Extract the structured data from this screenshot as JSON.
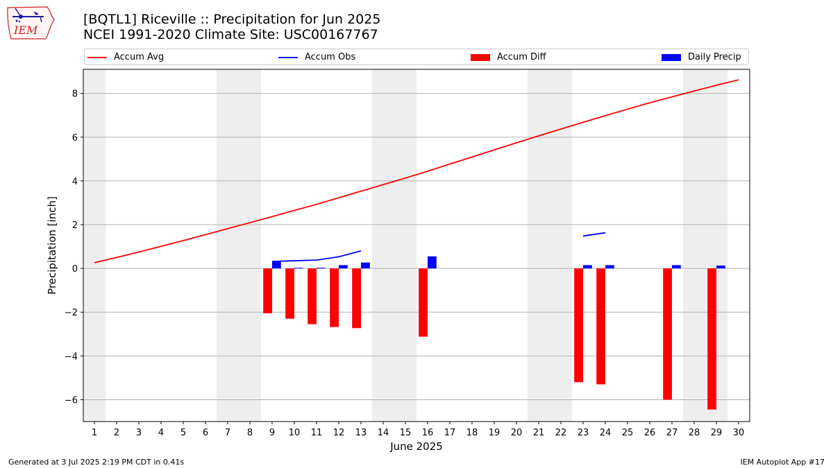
{
  "header": {
    "title_line1": "[BQTL1] Riceville :: Precipitation for Jun 2025",
    "title_line2": "NCEI 1991-2020 Climate Site: USC00167767"
  },
  "logo": {
    "text": "IEM",
    "icon": "iowa-state-outline-weather-station-logo"
  },
  "legend": [
    {
      "label": "Accum Avg",
      "kind": "line",
      "color": "#ff0000"
    },
    {
      "label": "Accum Obs",
      "kind": "line",
      "color": "#0000ff"
    },
    {
      "label": "Accum Diff",
      "kind": "patch",
      "color": "#ff0000"
    },
    {
      "label": "Daily Precip",
      "kind": "patch",
      "color": "#0000ff"
    }
  ],
  "footer": {
    "left": "Generated at 3 Jul 2025 2:19 PM CDT in 0.41s",
    "right": "IEM Autoplot App #17"
  },
  "chart_data": {
    "type": "bar",
    "title": "[BQTL1] Riceville :: Precipitation for Jun 2025",
    "subtitle": "NCEI 1991-2020 Climate Site: USC00167767",
    "xlabel": "June 2025",
    "ylabel": "Precipitation [inch]",
    "xlim": [
      0.5,
      30.5
    ],
    "ylim": [
      -7.0,
      9.1
    ],
    "x_ticks": [
      1,
      2,
      3,
      4,
      5,
      6,
      7,
      8,
      9,
      10,
      11,
      12,
      13,
      14,
      15,
      16,
      17,
      18,
      19,
      20,
      21,
      22,
      23,
      24,
      25,
      26,
      27,
      28,
      29,
      30
    ],
    "y_ticks": [
      -6,
      -4,
      -2,
      0,
      2,
      4,
      6,
      8
    ],
    "y_tick_labels": [
      "−6",
      "−4",
      "−2",
      "0",
      "2",
      "4",
      "6",
      "8"
    ],
    "grid": "horizontal",
    "legend_placement": "top, above plot",
    "weekend_shading": {
      "color": "#eeeeee",
      "days": [
        1,
        7,
        8,
        14,
        15,
        21,
        22,
        28,
        29
      ]
    },
    "series": [
      {
        "name": "Accum Avg",
        "kind": "line",
        "color": "#ff0000",
        "x": [
          1,
          2,
          3,
          4,
          5,
          6,
          7,
          8,
          9,
          10,
          11,
          12,
          13,
          14,
          15,
          16,
          17,
          18,
          19,
          20,
          21,
          22,
          23,
          24,
          25,
          26,
          27,
          28,
          29,
          30
        ],
        "values": [
          0.26,
          0.5,
          0.75,
          1.01,
          1.27,
          1.54,
          1.82,
          2.09,
          2.37,
          2.65,
          2.93,
          3.23,
          3.53,
          3.83,
          4.13,
          4.44,
          4.77,
          5.09,
          5.42,
          5.74,
          6.06,
          6.37,
          6.68,
          6.98,
          7.28,
          7.57,
          7.84,
          8.11,
          8.37,
          8.62
        ]
      },
      {
        "name": "Accum Obs",
        "kind": "line",
        "color": "#0000ff",
        "segments": [
          {
            "x": [
              9,
              10,
              11,
              12,
              13
            ],
            "values": [
              0.32,
              0.35,
              0.38,
              0.53,
              0.8
            ]
          },
          {
            "x": [
              23,
              24
            ],
            "values": [
              1.48,
              1.63
            ]
          }
        ]
      },
      {
        "name": "Accum Diff",
        "kind": "bar",
        "color": "#ff0000",
        "offset": -0.2,
        "x": [
          9,
          10,
          11,
          12,
          13,
          16,
          23,
          24,
          27,
          29
        ],
        "values": [
          -2.05,
          -2.3,
          -2.55,
          -2.68,
          -2.73,
          -3.12,
          -5.2,
          -5.3,
          -6.0,
          -6.45
        ]
      },
      {
        "name": "Daily Precip",
        "kind": "bar",
        "color": "#0000ff",
        "offset": 0.2,
        "x": [
          9,
          10,
          11,
          12,
          13,
          16,
          23,
          24,
          27,
          29
        ],
        "values": [
          0.32,
          0.03,
          0.03,
          0.15,
          0.27,
          0.55,
          0.15,
          0.15,
          0.15,
          0.13
        ]
      }
    ]
  }
}
